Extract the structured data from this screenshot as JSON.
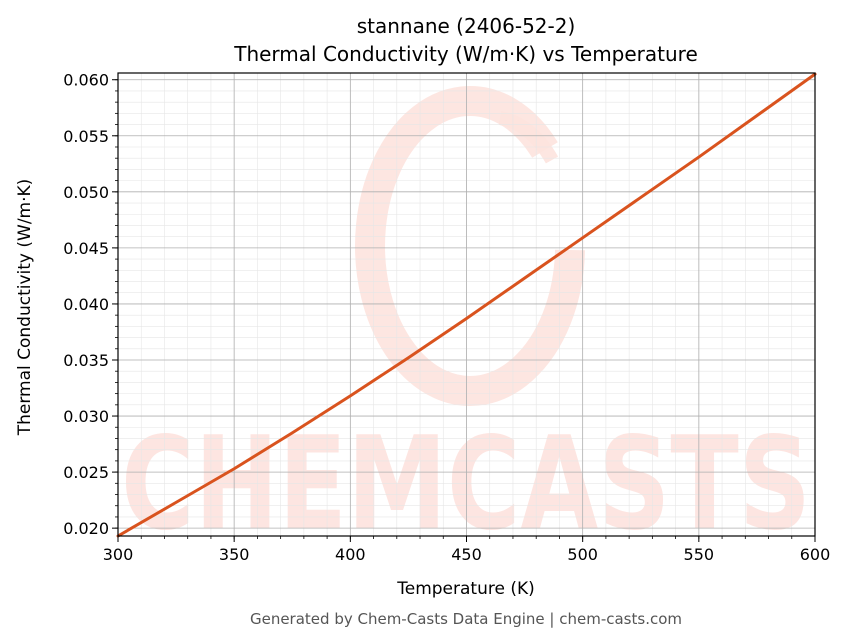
{
  "chart_data": {
    "type": "line",
    "title": "stannane (2406-52-2)",
    "subtitle": "Thermal Conductivity (W/m·K) vs Temperature",
    "xlabel": "Temperature (K)",
    "ylabel": "Thermal Conductivity (W/m·K)",
    "xlim": [
      300,
      600
    ],
    "ylim": [
      0.0193,
      0.0606
    ],
    "xticks": [
      "300",
      "350",
      "400",
      "450",
      "500",
      "550",
      "600"
    ],
    "yticks": [
      "0.020",
      "0.025",
      "0.030",
      "0.035",
      "0.040",
      "0.045",
      "0.050",
      "0.055",
      "0.060"
    ],
    "grid": true,
    "series": [
      {
        "color": "#d9531e",
        "x": [
          300,
          325,
          350,
          375,
          400,
          425,
          450,
          475,
          500,
          525,
          550,
          575,
          600
        ],
        "y": [
          0.0193,
          0.0223,
          0.0253,
          0.0285,
          0.0318,
          0.0352,
          0.0387,
          0.0423,
          0.0459,
          0.0495,
          0.0531,
          0.0568,
          0.0605
        ]
      }
    ]
  },
  "watermark": {
    "text": "CHEMCASTS",
    "color": "#fde3de"
  },
  "footer": {
    "text": "Generated by Chem-Casts Data Engine | chem-casts.com"
  }
}
